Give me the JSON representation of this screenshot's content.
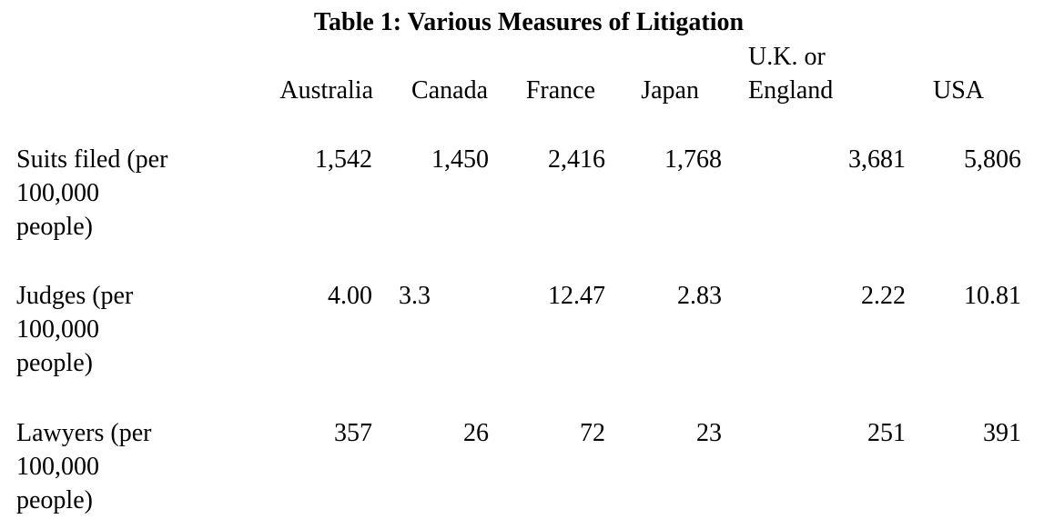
{
  "title": "Table 1:  Various Measures of Litigation",
  "table": {
    "columns": [
      "Australia",
      "Canada",
      "France",
      "Japan",
      "U.K. or England",
      "USA"
    ],
    "rows": [
      [
        "Suits filed (per 100,000 people)",
        "1,542",
        "1,450",
        "2,416",
        "1,768",
        "3,681",
        "5,806"
      ],
      [
        "Judges (per 100,000 people)",
        "4.00",
        "3.3",
        "12.47",
        "2.83",
        "2.22",
        "10.81"
      ],
      [
        "Lawyers (per 100,000 people)",
        "357",
        "26",
        "72",
        "23",
        "251",
        "391"
      ]
    ]
  }
}
